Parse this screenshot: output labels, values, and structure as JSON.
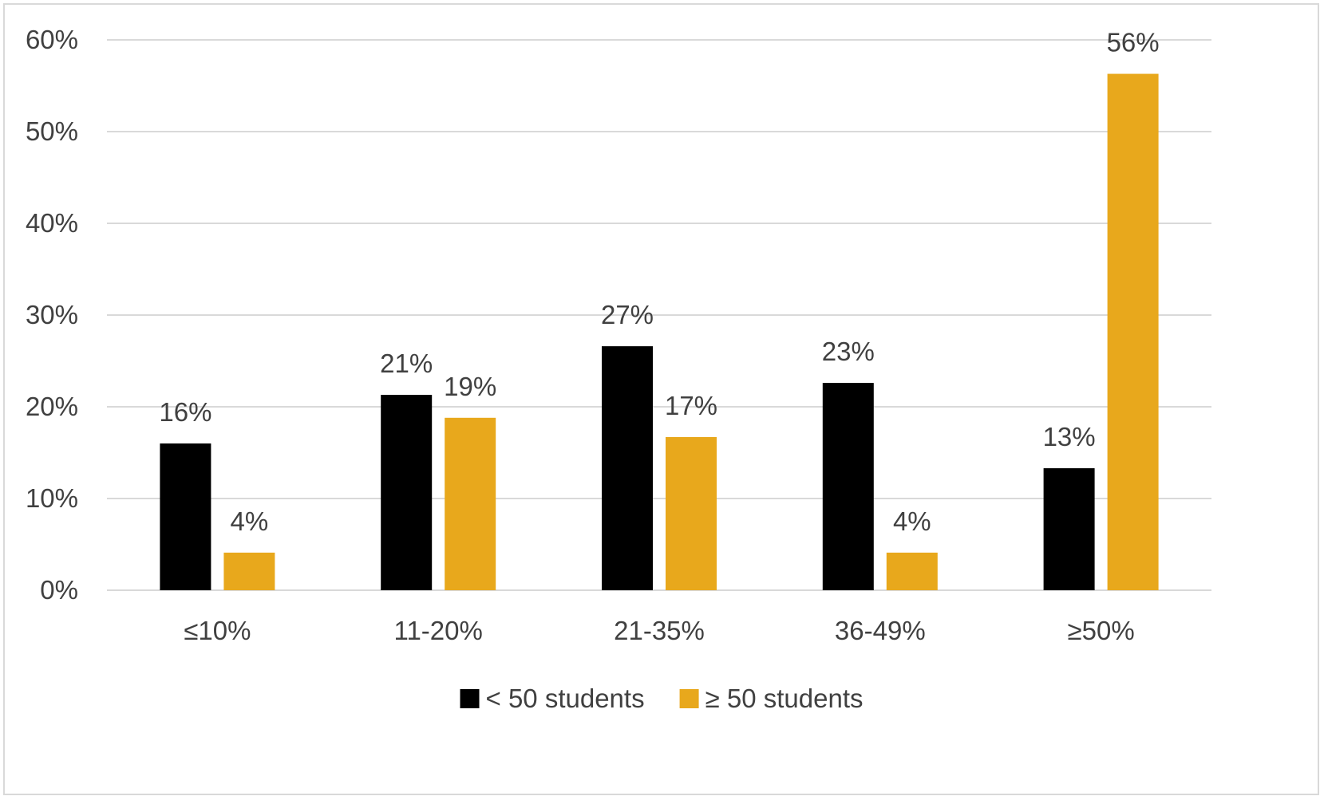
{
  "chart_data": {
    "type": "bar",
    "categories": [
      "≤10%",
      "11-20%",
      "21-35%",
      "36-49%",
      "≥50%"
    ],
    "series": [
      {
        "name": "< 50 students",
        "color": "#000000",
        "values": [
          16,
          21.3,
          26.6,
          22.6,
          13.3
        ],
        "labels": [
          "16%",
          "21%",
          "27%",
          "23%",
          "13%"
        ]
      },
      {
        "name": "≥ 50 students",
        "color": "#E8A81C",
        "values": [
          4.1,
          18.8,
          16.7,
          4.1,
          56.3
        ],
        "labels": [
          "4%",
          "19%",
          "17%",
          "4%",
          "56%"
        ]
      }
    ],
    "ylim": [
      0,
      60
    ],
    "yticks": [
      0,
      10,
      20,
      30,
      40,
      50,
      60
    ],
    "ytick_labels": [
      "0%",
      "10%",
      "20%",
      "30%",
      "40%",
      "50%",
      "60%"
    ],
    "title": "",
    "xlabel": "",
    "ylabel": "",
    "grid": true,
    "legend_position": "bottom-center"
  }
}
